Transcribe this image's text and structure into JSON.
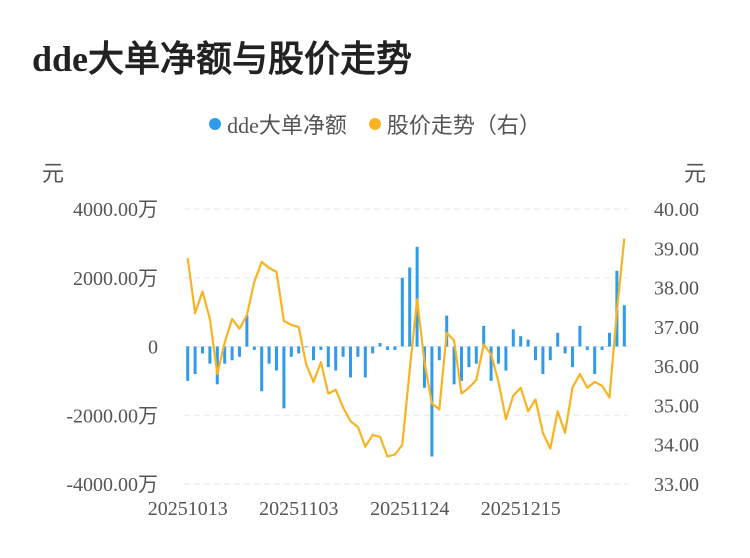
{
  "header": {
    "title": "dde大单净额与股价走势"
  },
  "legend": {
    "items": [
      {
        "label": "dde大单净额",
        "color": "#2f9bea"
      },
      {
        "label": "股价走势（右）",
        "color": "#f7b420"
      }
    ]
  },
  "axes": {
    "left_unit": "元",
    "right_unit": "元"
  },
  "chart_data": {
    "type": "bar+line",
    "title": "dde大单净额与股价走势",
    "x_ticks": [
      "20251013",
      "20251103",
      "20251124",
      "20251215"
    ],
    "left_axis": {
      "unit": "元",
      "ylim": [
        -4000,
        4000
      ],
      "ticks": [
        "4000.00万",
        "2000.00万",
        "0",
        "-2000.00万",
        "-4000.00万"
      ],
      "tick_values": [
        4000,
        2000,
        0,
        -2000,
        -4000
      ]
    },
    "right_axis": {
      "unit": "元",
      "ylim": [
        33.0,
        40.0
      ],
      "ticks": [
        "40.00",
        "39.00",
        "38.00",
        "37.00",
        "36.00",
        "35.00",
        "34.00",
        "33.00"
      ],
      "tick_values": [
        40,
        39,
        38,
        37,
        36,
        35,
        34,
        33
      ]
    },
    "grid": "horizontal dashed",
    "legend_position": "top-center",
    "series": [
      {
        "name": "dde大单净额",
        "kind": "bar",
        "color": "#2f9bea",
        "values": [
          -1000,
          -800,
          -200,
          -500,
          -1100,
          -500,
          -400,
          -300,
          900,
          -100,
          -1300,
          -500,
          -700,
          -1800,
          -300,
          -200,
          0,
          -400,
          -100,
          -600,
          -700,
          -300,
          -900,
          -300,
          -900,
          -200,
          100,
          -100,
          -100,
          2000,
          2300,
          2900,
          -1200,
          -3200,
          -400,
          900,
          -1100,
          -1000,
          -600,
          -500,
          600,
          -1000,
          -500,
          -700,
          500,
          300,
          200,
          -400,
          -800,
          -400,
          400,
          -200,
          -600,
          600,
          -100,
          -800,
          -100,
          400,
          2200,
          1200
        ]
      },
      {
        "name": "股价走势（右）",
        "kind": "line",
        "color": "#f7b420",
        "values": [
          38.75,
          37.35,
          37.9,
          37.2,
          35.8,
          36.6,
          37.2,
          36.95,
          37.3,
          38.15,
          38.65,
          38.5,
          38.4,
          37.15,
          37.05,
          37.0,
          36.05,
          35.6,
          36.1,
          35.3,
          35.4,
          34.95,
          34.6,
          34.45,
          33.95,
          34.25,
          34.2,
          33.7,
          33.75,
          34.0,
          35.9,
          37.7,
          36.1,
          35.05,
          34.9,
          36.85,
          36.65,
          35.3,
          35.45,
          35.65,
          36.55,
          36.3,
          35.6,
          34.65,
          35.25,
          35.45,
          34.85,
          35.15,
          34.3,
          33.9,
          34.85,
          34.3,
          35.45,
          35.8,
          35.45,
          35.6,
          35.5,
          35.2,
          37.4,
          39.25
        ]
      }
    ]
  }
}
